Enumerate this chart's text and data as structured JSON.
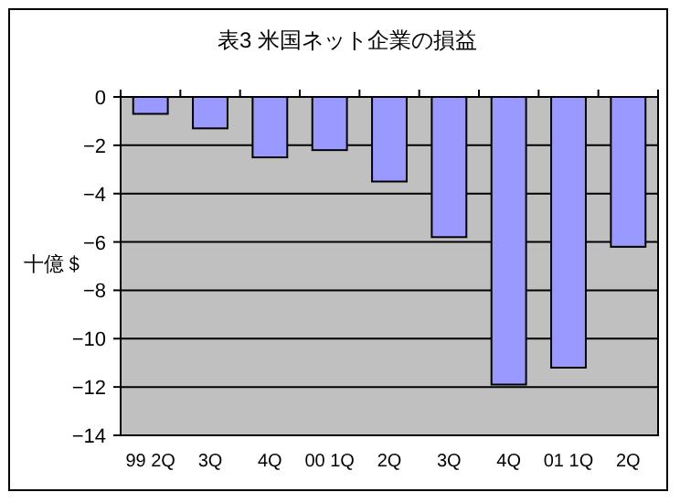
{
  "chart_data": {
    "type": "bar",
    "title": "表3  米国ネット企業の損益",
    "ylabel": "十億＄",
    "categories": [
      "99 2Q",
      "3Q",
      "4Q",
      "00 1Q",
      "2Q",
      "3Q",
      "4Q",
      "01 1Q",
      "2Q"
    ],
    "values": [
      -0.7,
      -1.3,
      -2.5,
      -2.2,
      -3.5,
      -5.8,
      -11.9,
      -11.2,
      -6.2
    ],
    "color": "#9999ff",
    "ylim": [
      -14,
      0
    ],
    "yticks": [
      -14,
      -12,
      -10,
      -8,
      -6,
      -4,
      -2,
      0
    ],
    "grid": "y"
  }
}
